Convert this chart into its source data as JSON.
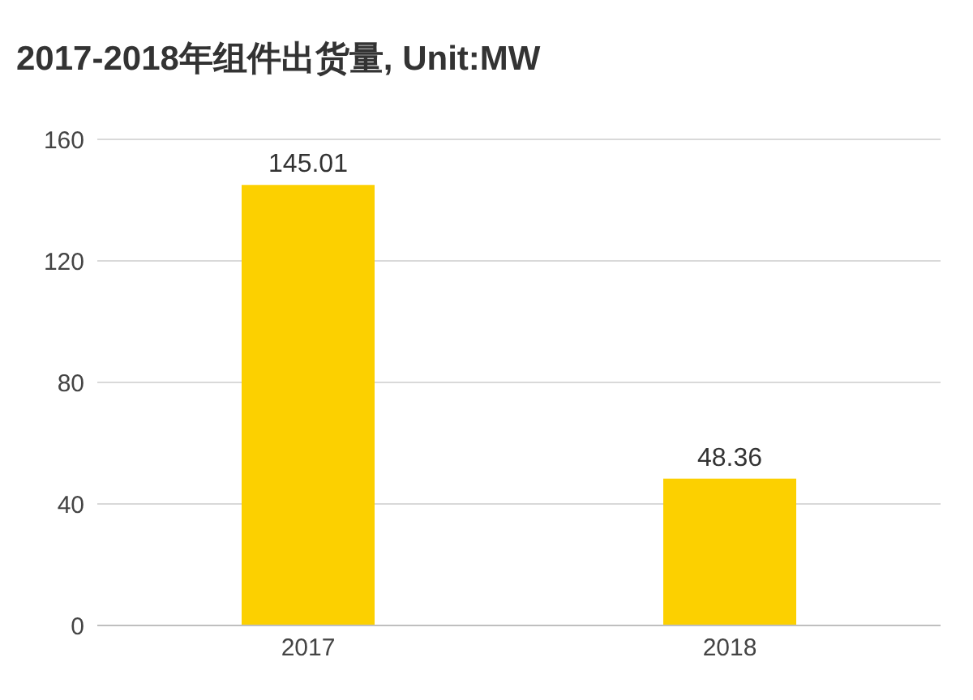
{
  "chart_data": {
    "type": "bar",
    "title": "2017-2018年组件出货量, Unit:MW",
    "categories": [
      "2017",
      "2018"
    ],
    "values": [
      145.01,
      48.36
    ],
    "color": "#fcd000",
    "ylim": [
      0,
      160
    ],
    "yticks": [
      0,
      40,
      80,
      120,
      160
    ],
    "grid": "y",
    "data_labels": true
  }
}
